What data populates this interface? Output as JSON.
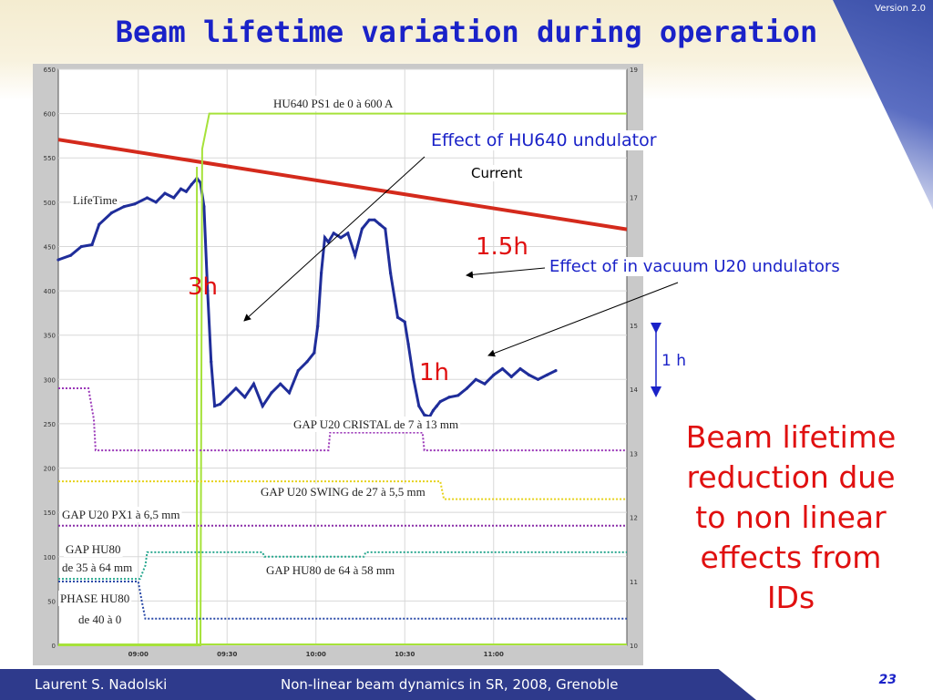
{
  "header": {
    "title": "Beam lifetime variation during operation",
    "version": "Version 2.0"
  },
  "annotations": {
    "hu640_effect": "Effect of HU640 undulator",
    "current": "Current",
    "u20_effect": "Effect of in vacuum U20 undulators",
    "one_h_scale": "1 h",
    "drop_3h": "3h",
    "drop_15h": "1.5h",
    "drop_1h": "1h"
  },
  "conclusion": {
    "lines": [
      "Beam lifetime",
      "reduction due",
      "to non linear",
      "effects from",
      "IDs"
    ]
  },
  "footer": {
    "author": "Laurent S. Nadolski",
    "conference": "Non-linear beam dynamics in SR,  2008, Grenoble",
    "page": "23"
  },
  "colors": {
    "title": "#1a22c8",
    "red_text": "#e01010",
    "footer_bg": "#2e3a8c",
    "lifetime": "#1f2d9a",
    "current": "#d42a1c",
    "hu640": "#a6e23a",
    "gap_u20_cristal": "#9a36b8",
    "gap_u20_swing": "#e6d21a",
    "gap_u20_px1": "#8a2ea8",
    "gap_hu80": "#2aa890",
    "phase_hu80": "#2a4aa8"
  },
  "chart_data": {
    "type": "line",
    "title": "",
    "xlabel": "",
    "ylabel": "",
    "x_ticks": [
      "09:00",
      "09:30",
      "10:00",
      "10:30",
      "11:00"
    ],
    "x_tick_hours": [
      9.0,
      9.5,
      10.0,
      10.5,
      11.0
    ],
    "xlim": [
      8.55,
      11.75
    ],
    "left_axis": {
      "ylim": [
        0,
        650
      ],
      "ticks": [
        0,
        50,
        100,
        150,
        200,
        250,
        300,
        350,
        400,
        450,
        500,
        550,
        600,
        650
      ]
    },
    "right_axis": {
      "ylim": [
        10,
        19
      ],
      "ticks": [
        10,
        11,
        12,
        13,
        14,
        15,
        16,
        17,
        18,
        19
      ]
    },
    "grid": true,
    "series": [
      {
        "name": "LifeTime",
        "label_text": "LifeTime",
        "style": "dotted-line",
        "x": [
          8.55,
          8.62,
          8.68,
          8.74,
          8.78,
          8.85,
          8.92,
          8.98,
          9.05,
          9.1,
          9.15,
          9.2,
          9.24,
          9.27,
          9.3,
          9.33,
          9.35,
          9.37,
          9.39,
          9.41,
          9.43,
          9.46,
          9.5,
          9.55,
          9.6,
          9.65,
          9.7,
          9.75,
          9.8,
          9.85,
          9.9,
          9.95,
          9.99,
          10.01,
          10.03,
          10.05,
          10.07,
          10.1,
          10.14,
          10.18,
          10.22,
          10.26,
          10.3,
          10.33,
          10.36,
          10.39,
          10.42,
          10.46,
          10.5,
          10.52,
          10.55,
          10.58,
          10.61,
          10.64,
          10.66,
          10.68,
          10.7,
          10.75,
          10.8,
          10.85,
          10.9,
          10.95,
          11.0,
          11.05,
          11.1,
          11.15,
          11.2,
          11.25,
          11.3,
          11.35
        ],
        "y": [
          435,
          440,
          450,
          452,
          475,
          488,
          495,
          498,
          505,
          500,
          510,
          505,
          515,
          512,
          520,
          527,
          522,
          495,
          400,
          320,
          270,
          272,
          280,
          290,
          280,
          295,
          270,
          285,
          295,
          285,
          310,
          320,
          330,
          360,
          420,
          460,
          455,
          465,
          460,
          465,
          440,
          470,
          480,
          480,
          475,
          470,
          420,
          370,
          365,
          340,
          300,
          270,
          260,
          258,
          265,
          270,
          275,
          280,
          282,
          290,
          300,
          295,
          305,
          312,
          303,
          312,
          305,
          300,
          305,
          310
        ]
      },
      {
        "name": "Current",
        "axis": "right",
        "style": "thick-line",
        "x": [
          8.55,
          11.75
        ],
        "y": [
          17.9,
          16.5
        ]
      },
      {
        "name": "HU640 PS1 de 0 à 600 A",
        "label_text": "HU640 PS1 de 0 à 600 A",
        "style": "step",
        "x": [
          8.55,
          9.35,
          9.36,
          9.4,
          11.75
        ],
        "y": [
          0,
          0,
          560,
          600,
          600
        ]
      },
      {
        "name": "GAP U20 CRISTAL de 7 à 13 mm",
        "label_text": "GAP U20  CRISTAL de 7 à 13 mm",
        "style": "dotted-step",
        "x": [
          8.55,
          8.72,
          8.75,
          8.76,
          10.07,
          10.08,
          10.6,
          10.61,
          11.75
        ],
        "y": [
          290,
          290,
          255,
          220,
          220,
          240,
          240,
          220,
          220
        ]
      },
      {
        "name": "GAP U20 SWING de 27 à 5,5 mm",
        "label_text": "GAP U20  SWING de 27 à 5,5 mm",
        "style": "dotted-step",
        "x": [
          8.55,
          10.7,
          10.72,
          11.75
        ],
        "y": [
          185,
          185,
          165,
          165
        ]
      },
      {
        "name": "GAP U20 PX1 à 6,5 mm",
        "label_text": "GAP U20  PX1 à 6,5 mm",
        "style": "dotted-step",
        "x": [
          8.55,
          11.75
        ],
        "y": [
          135,
          135
        ]
      },
      {
        "name": "GAP HU80 de 35 à 64 mm / de 64 à 58 mm",
        "label_text": "GAP HU80 de 64 à 58 mm",
        "style": "dotted-step",
        "x": [
          8.55,
          9.01,
          9.02,
          9.04,
          9.05,
          9.7,
          9.71,
          10.27,
          10.28,
          11.75
        ],
        "y": [
          75,
          75,
          80,
          90,
          105,
          105,
          100,
          100,
          105,
          105
        ]
      },
      {
        "name": "PHASE HU80 de 40 à 0",
        "style": "dotted-step",
        "x": [
          8.55,
          9.0,
          9.02,
          9.04,
          11.75
        ],
        "y": [
          72,
          72,
          50,
          30,
          30
        ]
      }
    ],
    "static_labels": [
      "GAP HU80",
      "de 35 à 64 mm",
      "PHASE HU80",
      "de 40 à 0"
    ]
  }
}
